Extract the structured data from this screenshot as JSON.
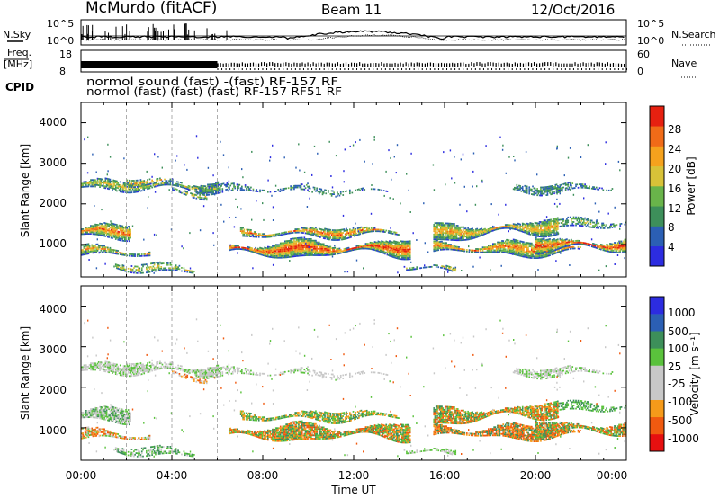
{
  "header": {
    "station": "McMurdo (fitACF)",
    "beam": "Beam 11",
    "date": "12/Oct/2016"
  },
  "noise_panel": {
    "left_label": "N.Sky",
    "left_ticks": [
      "10^5",
      "10^0"
    ],
    "right_label": "N.Search",
    "right_ticks": [
      "10^5",
      "10^0"
    ]
  },
  "freq_panel": {
    "left_label_1": "Freq.",
    "left_label_2": "[MHz]",
    "left_ticks": [
      "18",
      "8"
    ],
    "right_label": "Nave",
    "right_ticks": [
      "60",
      "0"
    ]
  },
  "cpid_panel": {
    "label": "CPID",
    "row1": "normol sound (fast) -(fast) RF-157 RF",
    "row2": "normol (fast) (fast) (fast) RF-157 RF51 RF"
  },
  "colors": {
    "power_scale": [
      "#2c2ce0",
      "#2b5fb4",
      "#3d8f5a",
      "#69b44a",
      "#d8c238",
      "#f5a21d",
      "#f06b18",
      "#e62010"
    ],
    "velocity_scale": [
      "#e61010",
      "#f05a10",
      "#f59a1a",
      "#c8c8c8",
      "#c8c8c8",
      "#5ac23c",
      "#3d8f5a",
      "#2b5fb4",
      "#2c2ce0"
    ]
  },
  "chart_data": [
    {
      "type": "heatmap",
      "panel": "power",
      "ylabel": "Slant Range [km]",
      "yticks": [
        "1000",
        "2000",
        "3000",
        "4000"
      ],
      "ylim": [
        200,
        4500
      ],
      "xlim_hours": [
        0,
        24
      ],
      "colorbar_label": "Power [dB]",
      "colorbar_ticks": [
        "4",
        "8",
        "12",
        "16",
        "20",
        "24",
        "28"
      ],
      "colorbar_range": [
        0,
        32
      ]
    },
    {
      "type": "heatmap",
      "panel": "velocity",
      "xlabel": "Time UT",
      "xticks": [
        "00:00",
        "04:00",
        "08:00",
        "12:00",
        "16:00",
        "20:00",
        "00:00"
      ],
      "ylabel": "Slant Range [km]",
      "yticks": [
        "1000",
        "2000",
        "3000",
        "4000"
      ],
      "ylim": [
        200,
        4500
      ],
      "xlim_hours": [
        0,
        24
      ],
      "colorbar_label": "Velocity [m s⁻¹]",
      "colorbar_ticks": [
        "1000",
        "500",
        "100",
        "25",
        "-25",
        "-100",
        "-500",
        "-1000"
      ]
    }
  ]
}
